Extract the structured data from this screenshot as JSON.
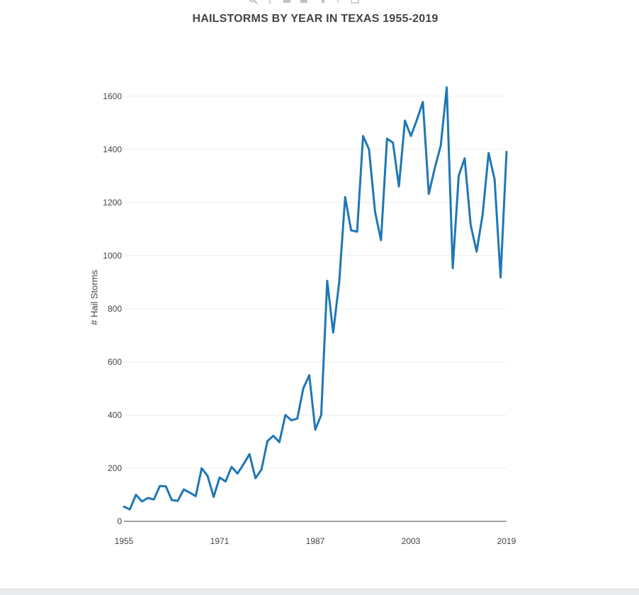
{
  "toolbar": {
    "icons": [
      "zoom-icon",
      "pan-icon",
      "zoom-in-icon",
      "zoom-out-icon",
      "autoscale-icon",
      "reset-axes-icon",
      "download-icon"
    ]
  },
  "colors": {
    "line": "#1f77b4",
    "grid": "#eeeeee",
    "axis": "#444444",
    "title": "#444444"
  },
  "chart_data": {
    "type": "line",
    "title": "HAILSTORMS BY YEAR IN TEXAS 1955-2019",
    "xlabel": "",
    "ylabel": "# Hail Storms",
    "xlim": [
      1955,
      2019
    ],
    "ylim": [
      0,
      1650
    ],
    "x_ticks": [
      1955,
      1971,
      1987,
      2003,
      2019
    ],
    "y_ticks": [
      0,
      200,
      400,
      600,
      800,
      1000,
      1200,
      1400,
      1600
    ],
    "grid": true,
    "legend": "none",
    "series": [
      {
        "x": [
          1955,
          1956,
          1957,
          1958,
          1959,
          1960,
          1961,
          1962,
          1963,
          1964,
          1965,
          1966,
          1967,
          1968,
          1969,
          1970,
          1971,
          1972,
          1973,
          1974,
          1975,
          1976,
          1977,
          1978,
          1979,
          1980,
          1981,
          1982,
          1983,
          1984,
          1985,
          1986,
          1987,
          1988,
          1989,
          1990,
          1991,
          1992,
          1993,
          1994,
          1995,
          1996,
          1997,
          1998,
          1999,
          2000,
          2001,
          2002,
          2003,
          2004,
          2005,
          2006,
          2007,
          2008,
          2009,
          2010,
          2011,
          2012,
          2013,
          2014,
          2015,
          2016,
          2017,
          2018,
          2019
        ],
        "y": [
          55,
          45,
          100,
          75,
          88,
          82,
          133,
          132,
          80,
          77,
          120,
          108,
          95,
          200,
          170,
          92,
          165,
          150,
          205,
          180,
          215,
          253,
          162,
          195,
          302,
          322,
          298,
          400,
          380,
          387,
          500,
          550,
          345,
          400,
          905,
          710,
          900,
          1220,
          1095,
          1090,
          1450,
          1400,
          1165,
          1058,
          1440,
          1425,
          1260,
          1508,
          1450,
          1510,
          1578,
          1232,
          1330,
          1415,
          1633,
          953,
          1300,
          1366,
          1115,
          1015,
          1155,
          1386,
          1288,
          918,
          1390
        ]
      }
    ]
  }
}
